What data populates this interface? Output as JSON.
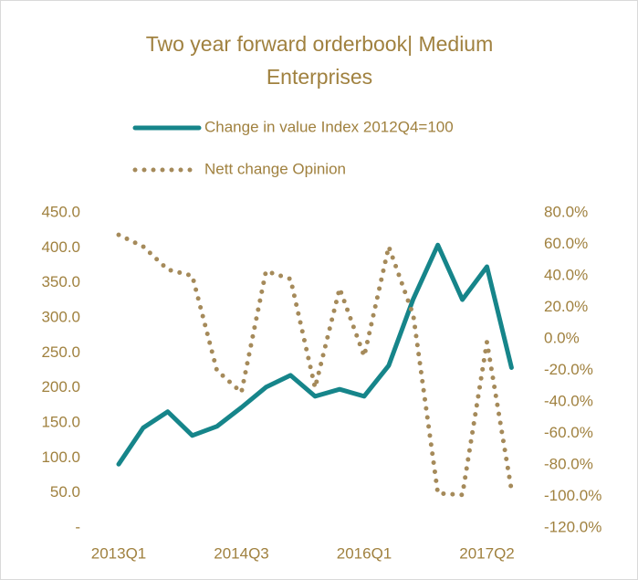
{
  "chart_data": {
    "type": "line",
    "title": [
      "Two year forward orderbook| Medium",
      "Enterprises"
    ],
    "categories": [
      "2013Q1",
      null,
      null,
      null,
      null,
      "2014Q3",
      null,
      null,
      null,
      null,
      "2016Q1",
      null,
      null,
      null,
      null,
      "2017Q2",
      null
    ],
    "series": [
      {
        "name": "Change in value Index 2012Q4=100",
        "color": "#16858a",
        "style": "solid",
        "axis": "y",
        "values": [
          91,
          143,
          166,
          132,
          145,
          172,
          201,
          218,
          188,
          198,
          188,
          232,
          327,
          404,
          326,
          373,
          229
        ]
      },
      {
        "name": "Nett change Opinion",
        "color": "#a58a5a",
        "style": "dotted",
        "axis": "y2",
        "values": [
          66,
          58.6,
          44,
          40,
          -20,
          -34,
          43,
          38,
          -31,
          32,
          -11,
          58.6,
          15,
          -98,
          -99,
          -2,
          -96
        ]
      }
    ],
    "ylim": [
      0,
      450
    ],
    "yticks": [
      {
        "value": 0,
        "label": "-"
      },
      {
        "value": 50,
        "label": "50.0"
      },
      {
        "value": 100,
        "label": "100.0"
      },
      {
        "value": 150,
        "label": "150.0"
      },
      {
        "value": 200,
        "label": "200.0"
      },
      {
        "value": 250,
        "label": "250.0"
      },
      {
        "value": 300,
        "label": "300.0"
      },
      {
        "value": 350,
        "label": "350.0"
      },
      {
        "value": 400,
        "label": "400.0"
      },
      {
        "value": 450,
        "label": "450.0"
      }
    ],
    "y2lim": [
      -120,
      80
    ],
    "y2ticks": [
      {
        "value": -120,
        "label": "-120.0%"
      },
      {
        "value": -100,
        "label": "-100.0%"
      },
      {
        "value": -80,
        "label": "-80.0%"
      },
      {
        "value": -60,
        "label": "-60.0%"
      },
      {
        "value": -40,
        "label": "-40.0%"
      },
      {
        "value": -20,
        "label": "-20.0%"
      },
      {
        "value": 0,
        "label": "0.0%"
      },
      {
        "value": 20,
        "label": "20.0%"
      },
      {
        "value": 40,
        "label": "40.0%"
      },
      {
        "value": 60,
        "label": "60.0%"
      },
      {
        "value": 80,
        "label": "80.0%"
      }
    ],
    "grid": false,
    "legend": "top"
  }
}
